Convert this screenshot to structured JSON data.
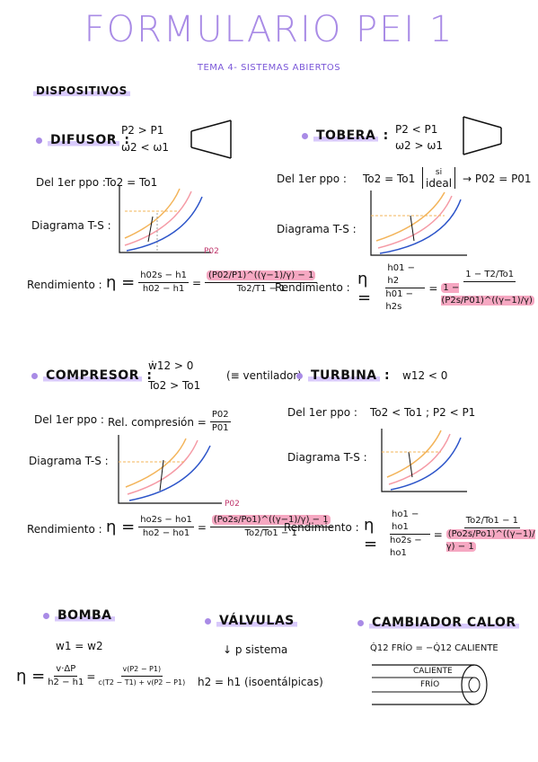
{
  "title": "FORMULARIO PEI 1",
  "subtitle": "TEMA 4- SISTEMAS ABIERTOS",
  "dispositivos": "DISPOSITIVOS",
  "difusor": {
    "name": "DIFUSOR",
    "cond1": "P2 > P1",
    "cond2": "ω2 < ω1",
    "ppo_label": "Del 1er ppo :",
    "ppo_eq": "To2 = To1",
    "diagram_label": "Diagrama T-S :",
    "p02": "P02",
    "rend_label": "Rendimiento :",
    "eta_num": "h02s − h1",
    "eta_den": "h02 − h1",
    "r_num": "(P02/P1)^((γ−1)/γ) − 1",
    "r_den": "To2/T1 − 1"
  },
  "tobera": {
    "name": "TOBERA",
    "cond1": "P2 < P1",
    "cond2": "ω2 > ω1",
    "ppo_label": "Del 1er ppo :",
    "ppo_eq": "To2 = To1",
    "ideal_top": "si",
    "ideal": "ideal",
    "ppo_eq2": "P02 = P01",
    "diagram_label": "Diagrama T-S :",
    "rend_label": "Rendimiento :",
    "eta_num": "h01 − h2",
    "eta_den": "h01 − h2s",
    "r_num": "1 − T2/To1",
    "r_den": "1 − (P2s/P01)^((γ−1)/γ)"
  },
  "compresor": {
    "name": "COMPRESOR",
    "cond1": "ẇ12 > 0",
    "cond2": "To2 > To1",
    "cond_note": "(≡ ventilador)",
    "ppo_label": "Del 1er ppo :",
    "ppo_eq": "Rel. compresión =",
    "ppo_num": "P02",
    "ppo_den": "P01",
    "diagram_label": "Diagrama T-S :",
    "p02": "P02",
    "rend_label": "Rendimiento :",
    "eta_num": "ho2s − ho1",
    "eta_den": "ho2 − ho1",
    "r_num": "(Po2s/Po1)^((γ−1)/γ) − 1",
    "r_den": "To2/To1 − 1"
  },
  "turbina": {
    "name": "TURBINA",
    "cond1": "w12 < 0",
    "ppo_label": "Del 1er ppo :",
    "ppo_eq": "To2 < To1 ;  P2 < P1",
    "diagram_label": "Diagrama T-S :",
    "rend_label": "Rendimiento :",
    "eta_num": "ho1 − ho1",
    "eta_den": "ho2s − ho1",
    "r_num": "To2/To1 − 1",
    "r_den": "(Po2s/Po1)^((γ−1)/γ) − 1"
  },
  "bomba": {
    "name": "BOMBA",
    "eq1": "w1 = w2",
    "eta_a_num": "v·ΔP",
    "eta_a_den": "h2 − h1",
    "eta_b_num": "v(P2 − P1)",
    "eta_b_den": "c(T2 − T1) + v(P2 − P1)"
  },
  "valvulas": {
    "name": "VÁLVULAS",
    "note": "↓ p sistema",
    "eq": "h2 = h1  (isoentálpicas)"
  },
  "cambiador": {
    "name": "CAMBIADOR CALOR",
    "eq": "Q̇12 FRÍO = −Q̇12 CALIENTE",
    "hot": "CALIENTE",
    "cold": "FRÍO"
  },
  "colors": {
    "accent": "#a98be6",
    "highlight": "#d8c9fb",
    "pink": "#f6a8c2",
    "orange": "#f3b45a",
    "blue": "#2c54c9"
  }
}
